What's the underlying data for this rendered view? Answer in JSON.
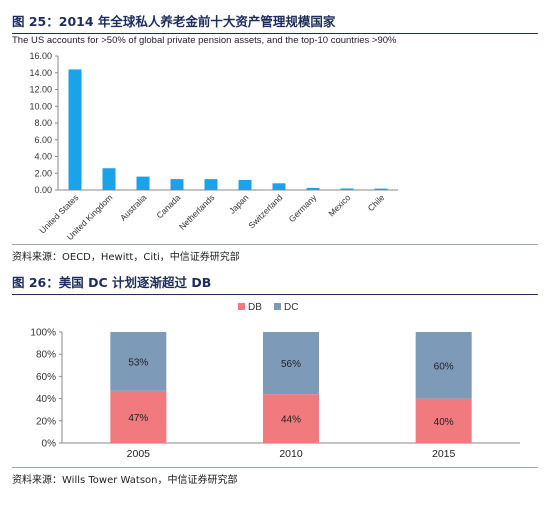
{
  "figures": [
    {
      "title": "图 25：2014 年全球私人养老金前十大资产管理规模国家",
      "source": "资料来源：OECD，Hewitt，Citi，中信证券研究部"
    },
    {
      "title": "图 26：美国 DC 计划逐渐超过 DB",
      "source": "资料来源：Wills Tower Watson，中信证券研究部"
    }
  ],
  "chart_data": [
    {
      "type": "bar",
      "subtitle": "The US accounts for >50% of global private pension assets, and the top-10 countries >90%",
      "categories": [
        "United States",
        "United Kingdom",
        "Australia",
        "Canada",
        "Netherlands",
        "Japan",
        "Switzerland",
        "Germany",
        "Mexico",
        "Chile"
      ],
      "values": [
        14.4,
        2.6,
        1.6,
        1.3,
        1.3,
        1.2,
        0.8,
        0.25,
        0.18,
        0.17
      ],
      "ylim": [
        0,
        16
      ],
      "yticks": [
        "0.00",
        "2.00",
        "4.00",
        "6.00",
        "8.00",
        "10.00",
        "12.00",
        "14.00",
        "16.00"
      ],
      "xlabel": "",
      "ylabel": "",
      "grid": false,
      "colors": {
        "bar": "#1aa3e8"
      }
    },
    {
      "type": "stacked-bar",
      "categories": [
        "2005",
        "2010",
        "2015"
      ],
      "series": [
        {
          "name": "DB",
          "values": [
            47,
            44,
            40
          ],
          "labels": [
            "47%",
            "44%",
            "40%"
          ],
          "color": "#f17a7e"
        },
        {
          "name": "DC",
          "values": [
            53,
            56,
            60
          ],
          "labels": [
            "53%",
            "56%",
            "60%"
          ],
          "color": "#7e9ab9"
        }
      ],
      "ylim": [
        0,
        100
      ],
      "yticks": [
        "0%",
        "20%",
        "40%",
        "60%",
        "80%",
        "100%"
      ],
      "legend": "top-center",
      "grid": false
    }
  ]
}
